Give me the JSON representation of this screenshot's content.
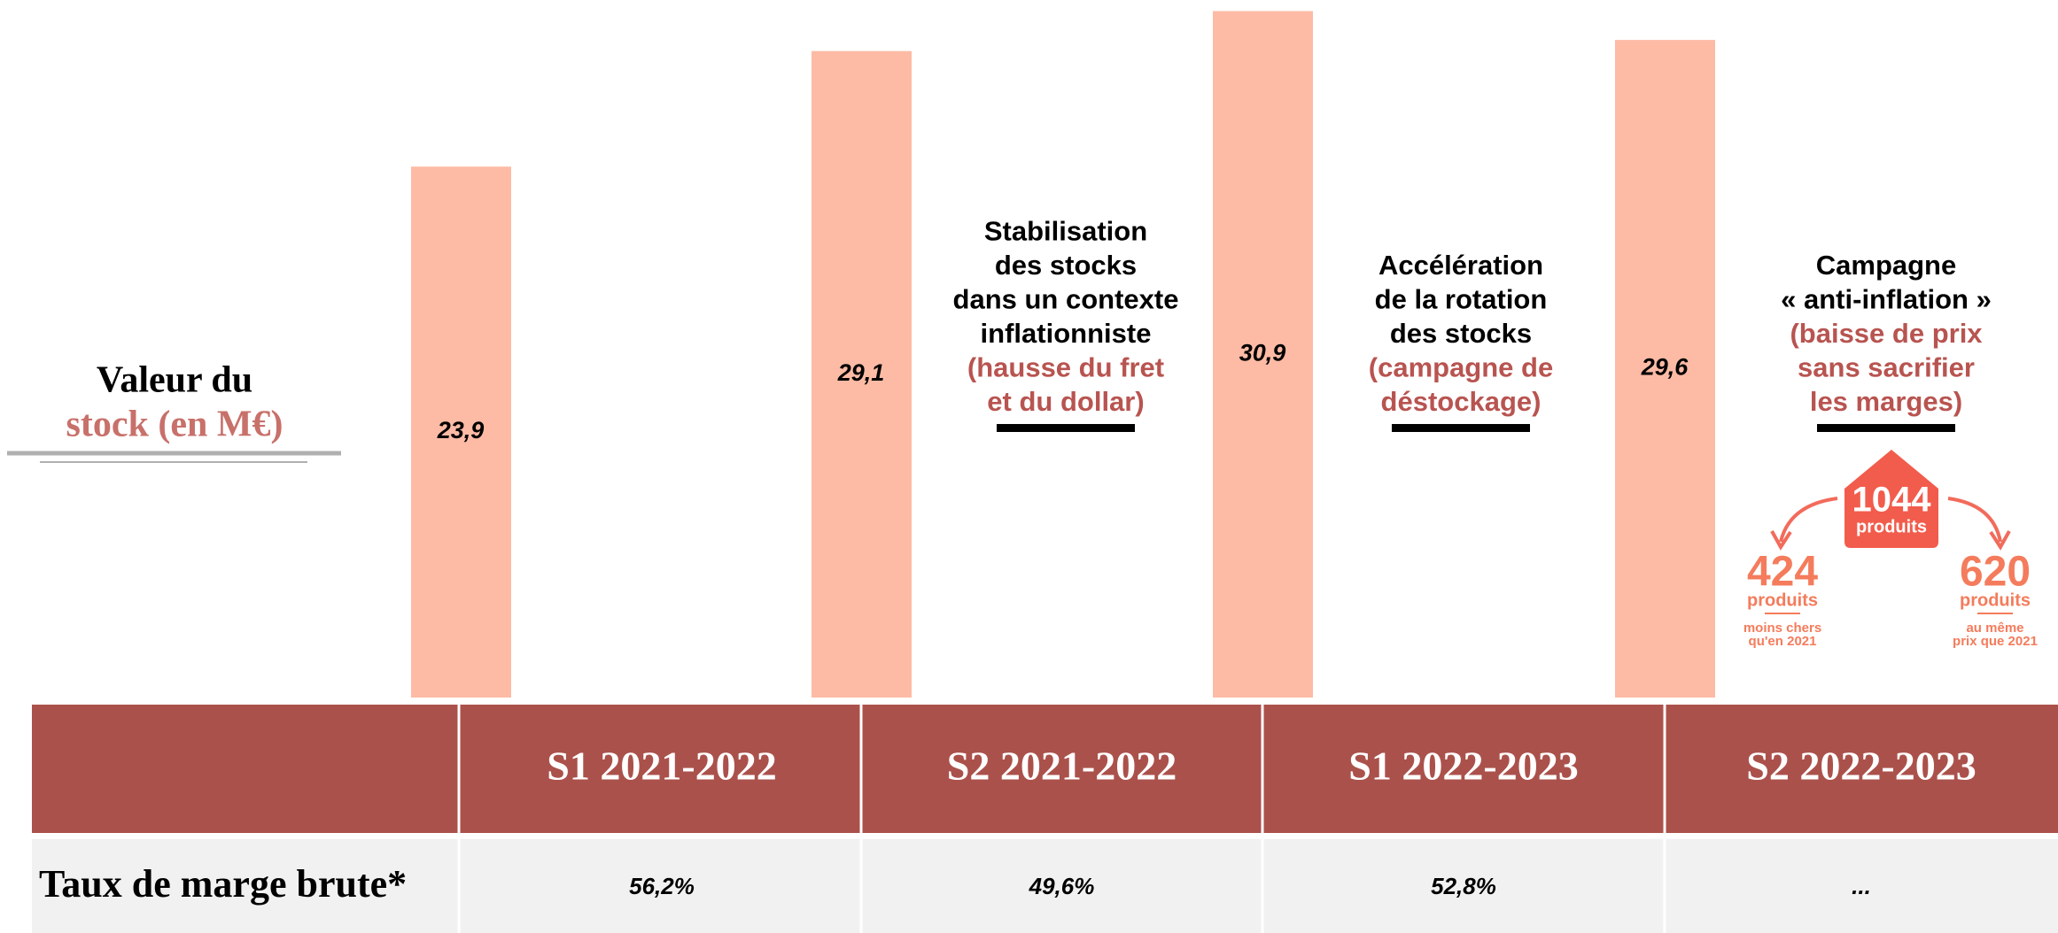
{
  "chart_data": {
    "type": "bar",
    "title": [
      "Valeur du",
      "stock (en M€)"
    ],
    "categories": [
      "S1 2021-2022",
      "S2 2021-2022",
      "S1 2022-2023",
      "S2 2022-2023"
    ],
    "values": [
      23.9,
      29.1,
      30.9,
      29.6
    ],
    "value_labels": [
      "23,9",
      "29,1",
      "30,9",
      "29,6"
    ],
    "color": "#fdbba5",
    "ylim": [
      0,
      31
    ]
  },
  "annotations": [
    {
      "lines": [
        "Stabilisation",
        "des stocks",
        "dans un contexte",
        "inflationniste"
      ],
      "highlight": [
        "(hausse du fret",
        "et du dollar)"
      ]
    },
    {
      "lines": [
        "Accélération",
        "de la rotation",
        "des stocks"
      ],
      "highlight": [
        "(campagne de",
        "déstockage)"
      ]
    },
    {
      "lines": [
        "Campagne",
        "« anti-inflation »"
      ],
      "highlight": [
        "(baisse de prix",
        "sans sacrifier",
        "les marges)"
      ]
    }
  ],
  "infographic": {
    "total": {
      "number": "1044",
      "unit": "produits"
    },
    "left": {
      "number": "424",
      "unit": "produits",
      "note": [
        "moins chers",
        "qu'en 2021"
      ]
    },
    "right": {
      "number": "620",
      "unit": "produits",
      "note": [
        "au même",
        "prix que 2021"
      ]
    }
  },
  "table": {
    "row_label": "Taux de marge brute*",
    "cells": [
      "56,2%",
      "49,6%",
      "52,8%",
      "..."
    ]
  }
}
